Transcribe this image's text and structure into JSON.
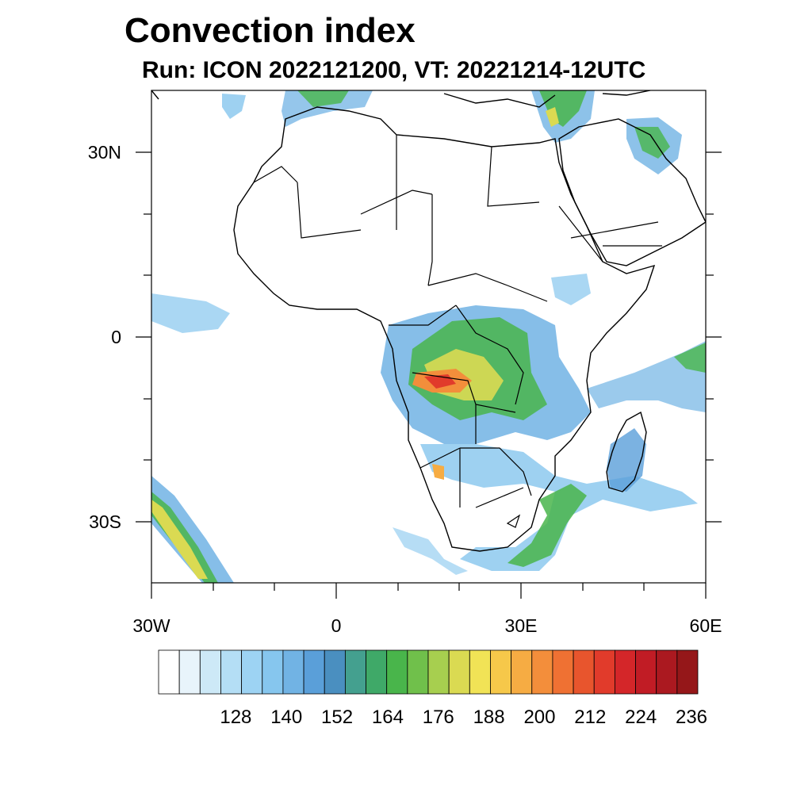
{
  "header": {
    "title": "Convection index",
    "subtitle": "Run: ICON 2022121200,  VT: 20221214-12UTC"
  },
  "map": {
    "lon_range": [
      -30,
      60
    ],
    "lat_range": [
      -40,
      40
    ],
    "lon_ticks": [
      {
        "value": -30,
        "label": "30W"
      },
      {
        "value": 0,
        "label": "0"
      },
      {
        "value": 30,
        "label": "30E"
      },
      {
        "value": 60,
        "label": "60E"
      }
    ],
    "lat_ticks": [
      {
        "value": 30,
        "label": "30N"
      },
      {
        "value": 0,
        "label": "0"
      },
      {
        "value": -30,
        "label": "30S"
      }
    ],
    "field": "convection index",
    "regions_of_high_index": [
      "Congo basin / Angola",
      "southern Africa",
      "eastern Mediterranean",
      "Arabian Gulf",
      "southwest Atlantic coast"
    ]
  },
  "colorbar": {
    "colors": [
      "#ffffff",
      "#e8f4fb",
      "#cde9f7",
      "#b4def5",
      "#9dd3f3",
      "#86c6ee",
      "#71b3e4",
      "#5a9fd9",
      "#4a8fc0",
      "#44a08f",
      "#3fa968",
      "#49b54b",
      "#70c04b",
      "#a7cf4f",
      "#dada52",
      "#f1e356",
      "#f6c84a",
      "#f6ac43",
      "#f38e3b",
      "#ef7133",
      "#e8552d",
      "#e13b2b",
      "#d42629",
      "#c11c25",
      "#ab1920",
      "#951719"
    ],
    "labels": [
      "128",
      "140",
      "152",
      "164",
      "176",
      "188",
      "200",
      "212",
      "224",
      "236"
    ]
  }
}
